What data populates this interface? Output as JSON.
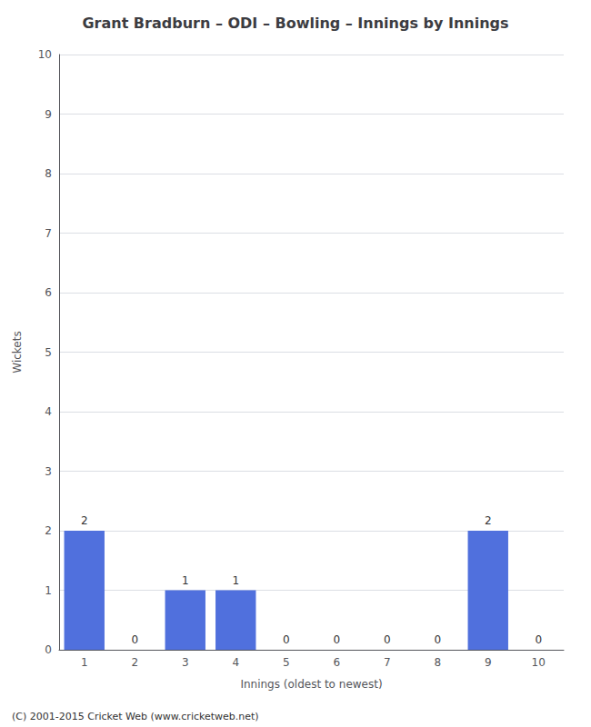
{
  "chart_data": {
    "type": "bar",
    "title": "Grant Bradburn – ODI – Bowling – Innings by Innings",
    "xlabel": "Innings (oldest to newest)",
    "ylabel": "Wickets",
    "categories": [
      1,
      2,
      3,
      4,
      5,
      6,
      7,
      8,
      9,
      10
    ],
    "values": [
      2,
      0,
      1,
      1,
      0,
      0,
      0,
      0,
      2,
      0
    ],
    "ylim": [
      0,
      10
    ],
    "yticks": [
      0,
      1,
      2,
      3,
      4,
      5,
      6,
      7,
      8,
      9,
      10
    ],
    "grid": true,
    "data_labels": true,
    "annotations": [
      "(C) 2001-2015 Cricket Web (www.cricketweb.net)"
    ]
  }
}
